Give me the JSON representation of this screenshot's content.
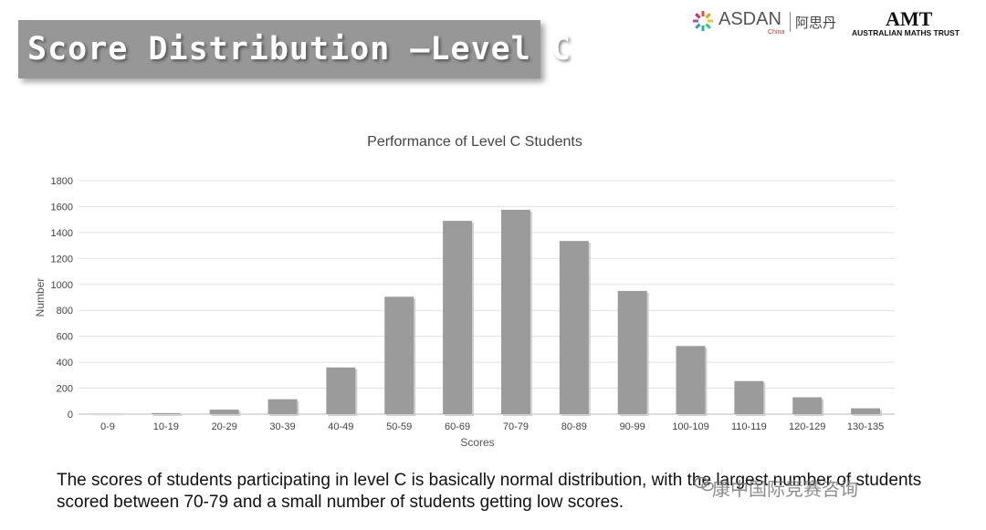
{
  "slide": {
    "title": "Score Distribution —Level C",
    "caption": "The scores of students participating in level C is basically normal distribution, with the largest number of students scored between 70-79 and a small number of students getting low scores.",
    "watermark": "康中国际竞赛咨询"
  },
  "logos": {
    "asdan_name": "ASDAN",
    "asdan_sub": "China",
    "asdan_cn": "阿思丹",
    "amt_mark": "AMT",
    "amt_name": "AUSTRALIAN MATHS TRUST"
  },
  "colors": {
    "bar": "#9b9b9b",
    "grid": "#e2e2e2",
    "banner": "#979797"
  },
  "chart_data": {
    "type": "bar",
    "title": "Performance of Level C Students",
    "xlabel": "Scores",
    "ylabel": "Number",
    "ylim": [
      0,
      1800
    ],
    "yticks": [
      0,
      200,
      400,
      600,
      800,
      1000,
      1200,
      1400,
      1600,
      1800
    ],
    "grid": true,
    "categories": [
      "0-9",
      "10-19",
      "20-29",
      "30-39",
      "40-49",
      "50-59",
      "60-69",
      "70-79",
      "80-89",
      "90-99",
      "100-109",
      "110-119",
      "120-129",
      "130-135"
    ],
    "values": [
      2,
      8,
      35,
      115,
      360,
      905,
      1490,
      1575,
      1335,
      950,
      525,
      255,
      130,
      45
    ]
  }
}
